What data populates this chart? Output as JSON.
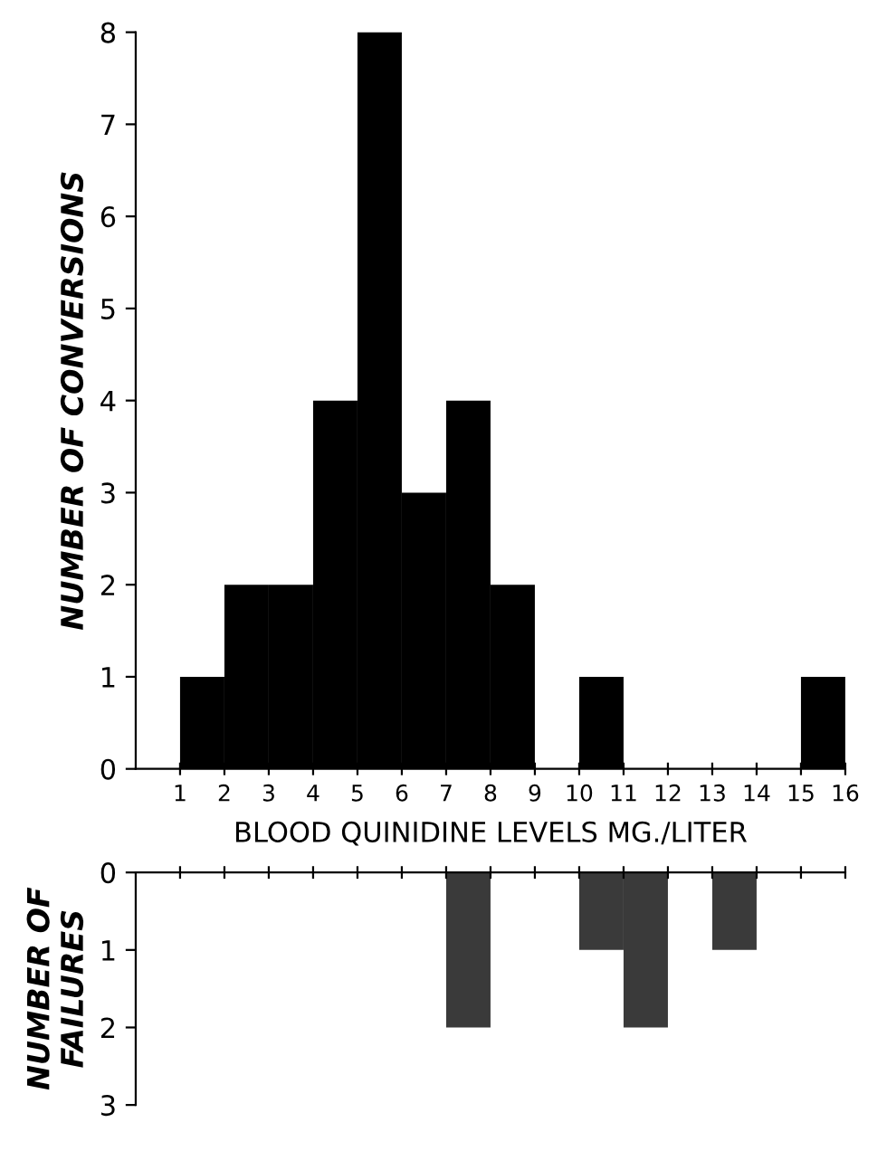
{
  "chart_data": [
    {
      "type": "histogram",
      "ylabel": "NUMBER OF CONVERSIONS",
      "xlabel": "BLOOD QUINIDINE LEVELS MG./LITER",
      "bins": [
        1,
        2,
        3,
        4,
        5,
        6,
        7,
        8,
        9,
        10,
        11,
        12,
        13,
        14,
        15,
        16
      ],
      "values": [
        1,
        2,
        2,
        4,
        8,
        3,
        4,
        2,
        0,
        1,
        0,
        0,
        0,
        0,
        1
      ],
      "color": "#000000",
      "xlim": [
        0,
        16
      ],
      "xticks": [
        1,
        2,
        3,
        4,
        5,
        6,
        7,
        8,
        9,
        10,
        11,
        12,
        13,
        14,
        15,
        16
      ],
      "ylim": [
        0,
        8
      ],
      "yticks": [
        0,
        1,
        2,
        3,
        4,
        5,
        6,
        7,
        8
      ],
      "grid": false,
      "legend": false
    },
    {
      "type": "histogram",
      "ylabel": "NUMBER OF FAILURES",
      "bins": [
        1,
        2,
        3,
        4,
        5,
        6,
        7,
        8,
        9,
        10,
        11,
        12,
        13,
        14,
        15,
        16
      ],
      "values": [
        0,
        0,
        0,
        0,
        0,
        0,
        2,
        0,
        0,
        1,
        2,
        0,
        1,
        0,
        0
      ],
      "color": "#3a3a3a",
      "xlim": [
        0,
        16
      ],
      "xticks": [
        {
          "value": 1,
          "label": null
        },
        {
          "value": 2,
          "label": null
        },
        {
          "value": 3,
          "label": null
        },
        {
          "value": 4,
          "label": null
        },
        {
          "value": 5,
          "label": null
        },
        {
          "value": 6,
          "label": null
        },
        {
          "value": 7,
          "label": null
        },
        {
          "value": 8,
          "label": null
        },
        {
          "value": 9,
          "label": null
        },
        {
          "value": 10,
          "label": null
        },
        {
          "value": 11,
          "label": null
        },
        {
          "value": 12,
          "label": null
        },
        {
          "value": 13,
          "label": null
        },
        {
          "value": 14,
          "label": null
        },
        {
          "value": 15,
          "label": null
        },
        {
          "value": 16,
          "label": null
        }
      ],
      "ylim": [
        3,
        0
      ],
      "yticks": [
        0,
        1,
        2,
        3
      ],
      "tick_labels": "y",
      "grid": false,
      "legend": false
    }
  ]
}
